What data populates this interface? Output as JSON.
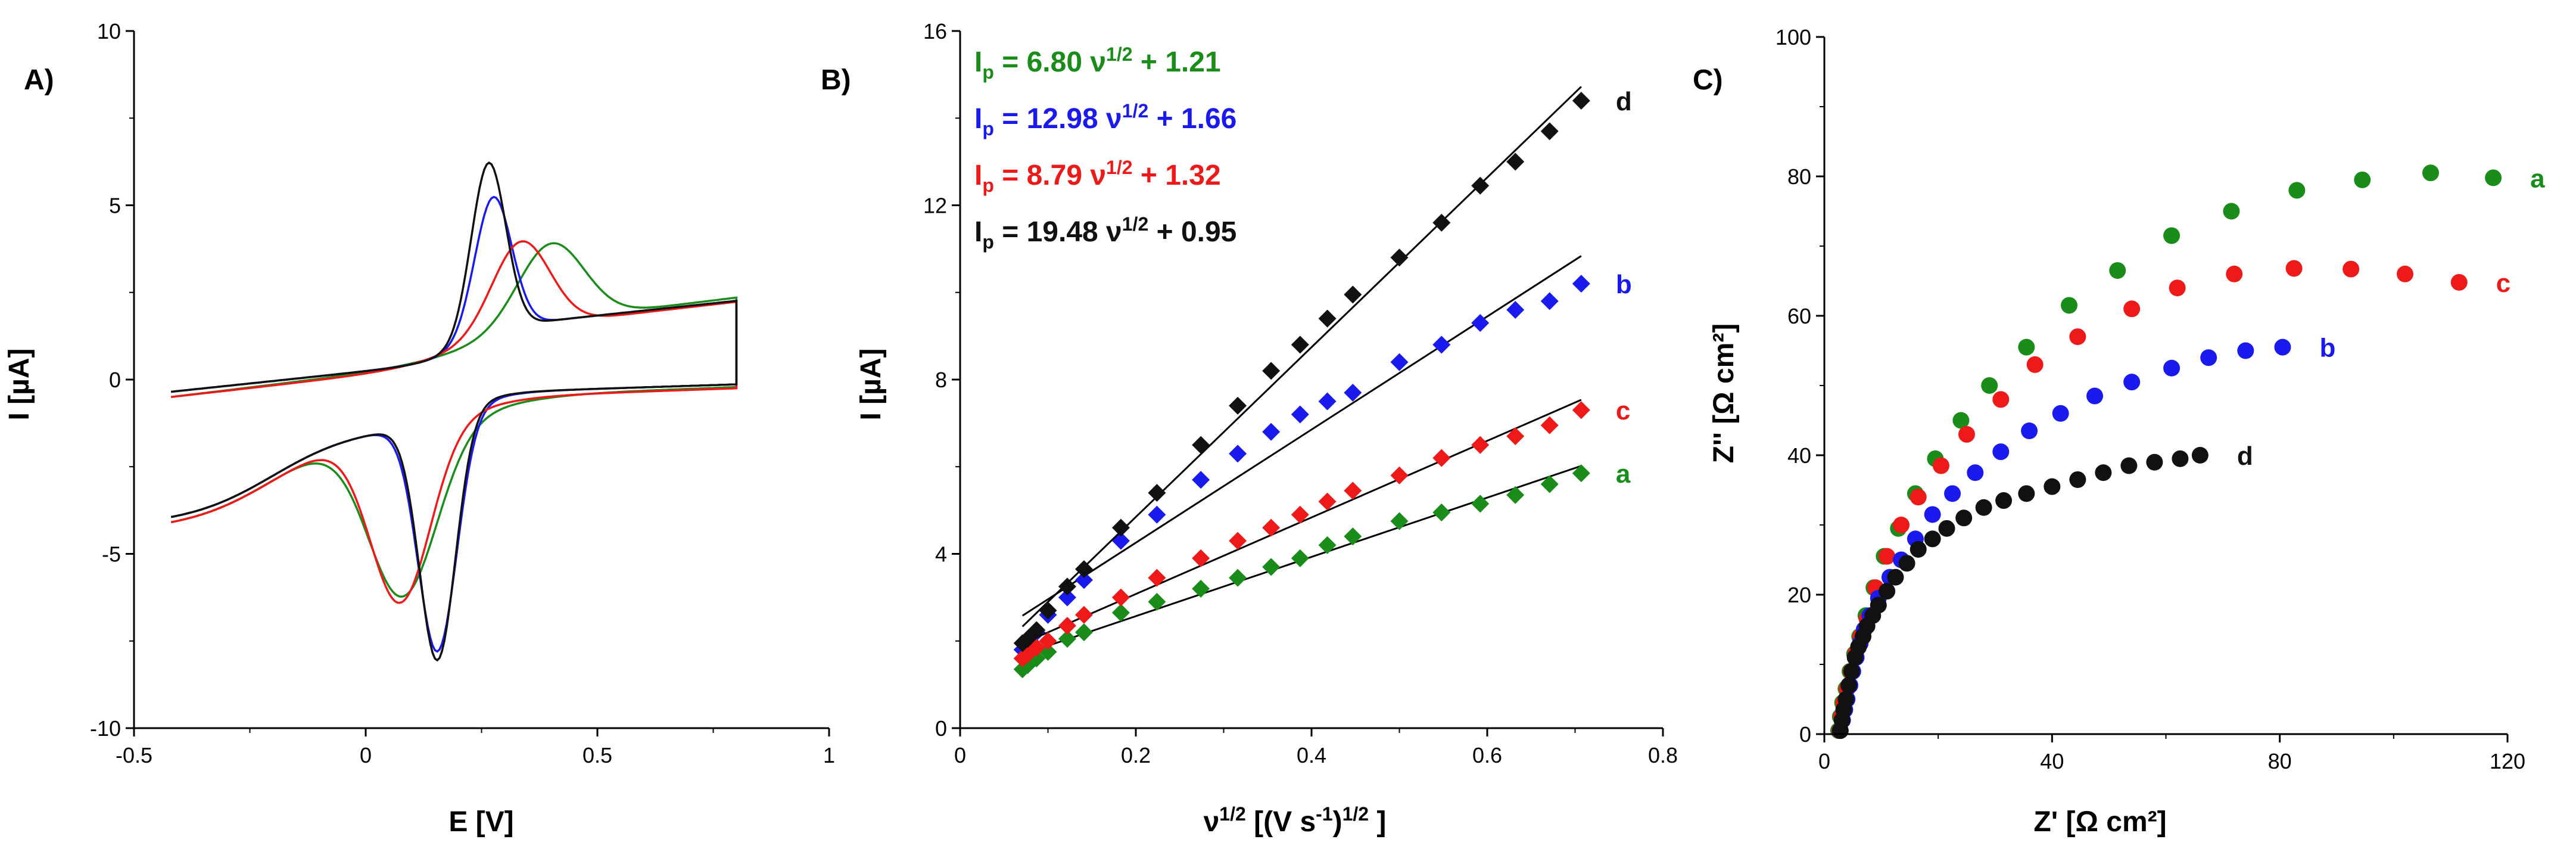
{
  "chart_data": [
    {
      "panel": "A)",
      "type": "line",
      "xlabel": "E [V]",
      "ylabel": "I [µA]",
      "xlim": [
        -0.5,
        1.0
      ],
      "ylim": [
        -10,
        10
      ],
      "xticks": [
        -0.5,
        0,
        0.5,
        1
      ],
      "yticks": [
        -10,
        -5,
        0,
        5,
        10
      ],
      "series": [
        {
          "name": "a",
          "color": "#1a8c1a",
          "params": {
            "E0": 0.24,
            "dE": 0.32,
            "ipa": 3.2,
            "ipc": -5.6,
            "w": 0.08,
            "bgc": -0.5,
            "bgs": 1.6
          }
        },
        {
          "name": "b",
          "color": "#1a1aee",
          "params": {
            "E0": 0.215,
            "dE": 0.12,
            "ipa": 4.8,
            "ipc": -7.8,
            "w": 0.045,
            "bgc": -0.35,
            "bgs": 1.4
          }
        },
        {
          "name": "c",
          "color": "#ee1a1a",
          "params": {
            "E0": 0.205,
            "dE": 0.26,
            "ipa": 3.45,
            "ipc": -5.8,
            "w": 0.07,
            "bgc": -0.5,
            "bgs": 1.5
          }
        },
        {
          "name": "d",
          "color": "#111111",
          "params": {
            "E0": 0.21,
            "dE": 0.11,
            "ipa": 5.8,
            "ipc": -8.1,
            "w": 0.042,
            "bgc": -0.35,
            "bgs": 1.4
          }
        }
      ]
    },
    {
      "panel": "B)",
      "type": "scatter",
      "xlabel": "ν^1/2 [(V s^-1)^1/2]",
      "ylabel": "I [µA]",
      "xlim": [
        0,
        0.8
      ],
      "ylim": [
        0,
        16
      ],
      "xticks": [
        0,
        0.2,
        0.4,
        0.6,
        0.8
      ],
      "yticks": [
        0,
        4,
        8,
        12,
        16
      ],
      "x": [
        0.071,
        0.077,
        0.087,
        0.1,
        0.122,
        0.141,
        0.183,
        0.224,
        0.274,
        0.316,
        0.354,
        0.387,
        0.418,
        0.447,
        0.5,
        0.548,
        0.592,
        0.632,
        0.671,
        0.707
      ],
      "series": [
        {
          "name": "a",
          "color": "#1a8c1a",
          "slope": 6.8,
          "intercept": 1.21,
          "values": [
            1.35,
            1.45,
            1.6,
            1.75,
            2.05,
            2.2,
            2.65,
            2.9,
            3.2,
            3.45,
            3.7,
            3.9,
            4.2,
            4.4,
            4.75,
            4.95,
            5.15,
            5.35,
            5.6,
            5.85
          ]
        },
        {
          "name": "b",
          "color": "#1a1aee",
          "slope": 12.98,
          "intercept": 1.66,
          "values": [
            1.8,
            2.0,
            2.2,
            2.6,
            3.0,
            3.4,
            4.3,
            4.9,
            5.7,
            6.3,
            6.8,
            7.2,
            7.5,
            7.7,
            8.4,
            8.8,
            9.3,
            9.6,
            9.8,
            10.2
          ]
        },
        {
          "name": "c",
          "color": "#ee1a1a",
          "slope": 8.79,
          "intercept": 1.32,
          "values": [
            1.6,
            1.7,
            1.85,
            2.0,
            2.35,
            2.6,
            3.0,
            3.45,
            3.9,
            4.3,
            4.6,
            4.9,
            5.2,
            5.45,
            5.8,
            6.2,
            6.5,
            6.7,
            6.95,
            7.3
          ]
        },
        {
          "name": "d",
          "color": "#111111",
          "slope": 19.48,
          "intercept": 0.95,
          "values": [
            1.95,
            2.05,
            2.25,
            2.7,
            3.25,
            3.65,
            4.6,
            5.4,
            6.5,
            7.4,
            8.2,
            8.8,
            9.4,
            9.95,
            10.8,
            11.6,
            12.45,
            13.0,
            13.7,
            14.4
          ]
        }
      ],
      "equations": [
        {
          "color": "#1a8c1a",
          "pre": "I",
          "sub": "p",
          "mid": " = 6.80 ν",
          "sup": "1/2",
          "post": " + 1.21"
        },
        {
          "color": "#1a1aee",
          "pre": "I",
          "sub": "p",
          "mid": " = 12.98 ν",
          "sup": "1/2",
          "post": " + 1.66"
        },
        {
          "color": "#ee1a1a",
          "pre": "I",
          "sub": "p",
          "mid": " = 8.79 ν",
          "sup": "1/2",
          "post": " + 1.32"
        },
        {
          "color": "#111111",
          "pre": "I",
          "sub": "p",
          "mid": " = 19.48 ν",
          "sup": "1/2",
          "post": " + 0.95"
        }
      ]
    },
    {
      "panel": "C)",
      "type": "scatter",
      "xlabel": "Z' [Ω cm²]",
      "ylabel": "Z'' [Ω cm²]",
      "xlim": [
        0,
        120
      ],
      "ylim": [
        0,
        100
      ],
      "xticks": [
        0,
        40,
        80,
        120
      ],
      "yticks": [
        0,
        20,
        40,
        60,
        80,
        100
      ],
      "series": [
        {
          "name": "a",
          "color": "#1a8c1a",
          "points": [
            [
              2.5,
              0.5
            ],
            [
              2.8,
              2.5
            ],
            [
              3.2,
              4.5
            ],
            [
              3.8,
              6.5
            ],
            [
              4.5,
              9
            ],
            [
              5.3,
              11.5
            ],
            [
              6.2,
              14
            ],
            [
              7.3,
              17
            ],
            [
              8.7,
              21
            ],
            [
              10.5,
              25.5
            ],
            [
              13,
              29.5
            ],
            [
              16,
              34.5
            ],
            [
              19.5,
              39.5
            ],
            [
              24,
              45
            ],
            [
              29,
              50
            ],
            [
              35.5,
              55.5
            ],
            [
              43,
              61.5
            ],
            [
              51.5,
              66.5
            ],
            [
              61,
              71.5
            ],
            [
              71.5,
              75
            ],
            [
              83,
              78
            ],
            [
              94.5,
              79.5
            ],
            [
              106.5,
              80.5
            ],
            [
              117.5,
              79.8
            ]
          ]
        },
        {
          "name": "c",
          "color": "#ee1a1a",
          "points": [
            [
              2.7,
              0.5
            ],
            [
              3,
              2.5
            ],
            [
              3.4,
              4.5
            ],
            [
              4,
              6.5
            ],
            [
              4.7,
              9
            ],
            [
              5.5,
              11.5
            ],
            [
              6.4,
              14
            ],
            [
              7.5,
              16.5
            ],
            [
              9,
              21
            ],
            [
              11,
              25.5
            ],
            [
              13.5,
              30
            ],
            [
              16.5,
              34
            ],
            [
              20.5,
              38.5
            ],
            [
              25,
              43
            ],
            [
              31,
              48
            ],
            [
              37,
              53
            ],
            [
              44.5,
              57
            ],
            [
              54,
              61
            ],
            [
              62,
              64
            ],
            [
              72,
              66
            ],
            [
              82.5,
              66.8
            ],
            [
              92.5,
              66.7
            ],
            [
              102,
              66
            ],
            [
              111.5,
              64.8
            ]
          ]
        },
        {
          "name": "b",
          "color": "#1a1aee",
          "points": [
            [
              2.8,
              0.5
            ],
            [
              3.2,
              2
            ],
            [
              3.6,
              3.5
            ],
            [
              4,
              5
            ],
            [
              4.5,
              7
            ],
            [
              5,
              9
            ],
            [
              5.6,
              11
            ],
            [
              6.3,
              13
            ],
            [
              7,
              15
            ],
            [
              8,
              17
            ],
            [
              9.5,
              19.5
            ],
            [
              11.5,
              22.5
            ],
            [
              13.5,
              25
            ],
            [
              16,
              28
            ],
            [
              19,
              31.5
            ],
            [
              22.5,
              34.5
            ],
            [
              26.5,
              37.5
            ],
            [
              31,
              40.5
            ],
            [
              36,
              43.5
            ],
            [
              41.5,
              46
            ],
            [
              47.5,
              48.5
            ],
            [
              54,
              50.5
            ],
            [
              61,
              52.5
            ],
            [
              67.5,
              54
            ],
            [
              74,
              55
            ],
            [
              80.5,
              55.5
            ]
          ]
        },
        {
          "name": "d",
          "color": "#111111",
          "points": [
            [
              2.8,
              0.5
            ],
            [
              3.1,
              2
            ],
            [
              3.4,
              3.5
            ],
            [
              3.8,
              5
            ],
            [
              4.3,
              7
            ],
            [
              4.8,
              9
            ],
            [
              5.4,
              11
            ],
            [
              6,
              12.5
            ],
            [
              6.8,
              14
            ],
            [
              7.5,
              15.5
            ],
            [
              8.5,
              17
            ],
            [
              9.5,
              18.5
            ],
            [
              11,
              20.5
            ],
            [
              12.5,
              22.5
            ],
            [
              14.5,
              24.5
            ],
            [
              16.5,
              26.5
            ],
            [
              19,
              28
            ],
            [
              21.5,
              29.5
            ],
            [
              24.5,
              31
            ],
            [
              28,
              32.5
            ],
            [
              31.5,
              33.5
            ],
            [
              35.5,
              34.5
            ],
            [
              40,
              35.5
            ],
            [
              44.5,
              36.5
            ],
            [
              49,
              37.5
            ],
            [
              53.5,
              38.5
            ],
            [
              58,
              39
            ],
            [
              62.5,
              39.5
            ],
            [
              66,
              40
            ]
          ]
        }
      ]
    }
  ]
}
